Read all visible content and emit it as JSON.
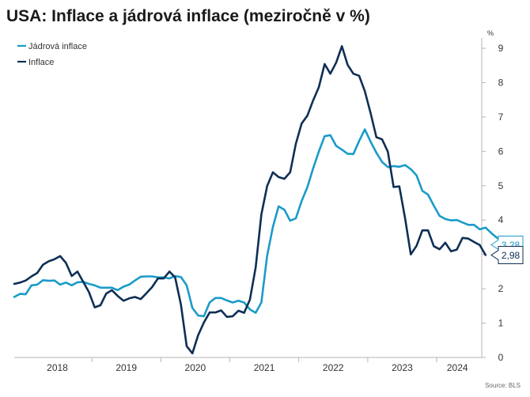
{
  "chart_data": {
    "type": "line",
    "title": "USA: Inflace a jádrová inflace (meziročně v %)",
    "ylabel": "%",
    "source": "Source: BLS",
    "ylim": [
      0,
      9.3
    ],
    "yticks": [
      "0",
      "1",
      "2",
      "3",
      "4",
      "5",
      "6",
      "7",
      "8",
      "9"
    ],
    "xlim": [
      2017.875,
      2024.55
    ],
    "xticks": [
      {
        "label": "2018",
        "value": 2018.5
      },
      {
        "label": "2019",
        "value": 2019.5
      },
      {
        "label": "2020",
        "value": 2020.5
      },
      {
        "label": "2021",
        "value": 2021.5
      },
      {
        "label": "2022",
        "value": 2022.5
      },
      {
        "label": "2023",
        "value": 2023.5
      },
      {
        "label": "2024",
        "value": 2024.3
      }
    ],
    "xseparators": [
      2019.0,
      2020.0,
      2021.0,
      2022.0,
      2023.0,
      2024.0
    ],
    "grid": false,
    "legend_position": "top-left",
    "series": [
      {
        "name": "Jádrová inflace",
        "color": "#1a9bc9",
        "end_label": "3,28",
        "start": 2017.875,
        "values": [
          1.76,
          1.85,
          1.84,
          2.1,
          2.12,
          2.25,
          2.23,
          2.24,
          2.12,
          2.18,
          2.1,
          2.19,
          2.2,
          2.14,
          2.1,
          2.03,
          2.03,
          2.03,
          1.96,
          2.06,
          2.12,
          2.24,
          2.35,
          2.36,
          2.36,
          2.33,
          2.33,
          2.3,
          2.37,
          2.34,
          2.1,
          1.44,
          1.22,
          1.2,
          1.6,
          1.73,
          1.73,
          1.66,
          1.6,
          1.65,
          1.6,
          1.4,
          1.3,
          1.6,
          2.96,
          3.8,
          4.4,
          4.3,
          3.98,
          4.05,
          4.55,
          4.96,
          5.5,
          6.0,
          6.44,
          6.47,
          6.16,
          6.05,
          5.93,
          5.92,
          6.3,
          6.64,
          6.28,
          5.96,
          5.69,
          5.54,
          5.57,
          5.55,
          5.6,
          5.48,
          5.3,
          4.85,
          4.74,
          4.42,
          4.12,
          4.03,
          3.99,
          4.0,
          3.93,
          3.86,
          3.86,
          3.73,
          3.78,
          3.62,
          3.48,
          3.4,
          3.28
        ]
      },
      {
        "name": "Inflace",
        "color": "#0e2f55",
        "end_label": "2,98",
        "start": 2017.875,
        "values": [
          2.14,
          2.18,
          2.24,
          2.36,
          2.46,
          2.7,
          2.8,
          2.86,
          2.95,
          2.75,
          2.37,
          2.5,
          2.2,
          1.9,
          1.46,
          1.52,
          1.86,
          1.96,
          1.79,
          1.65,
          1.72,
          1.76,
          1.7,
          1.87,
          2.05,
          2.3,
          2.3,
          2.5,
          2.33,
          1.54,
          0.33,
          0.12,
          0.65,
          1.02,
          1.31,
          1.31,
          1.37,
          1.18,
          1.2,
          1.36,
          1.3,
          1.68,
          2.62,
          4.16,
          4.99,
          5.39,
          5.25,
          5.2,
          5.39,
          6.22,
          6.81,
          7.04,
          7.48,
          7.87,
          8.54,
          8.26,
          8.58,
          9.06,
          8.52,
          8.26,
          8.2,
          7.75,
          7.11,
          6.41,
          6.35,
          5.99,
          4.96,
          4.98,
          4.05,
          3.0,
          3.25,
          3.7,
          3.7,
          3.24,
          3.15,
          3.34,
          3.09,
          3.14,
          3.48,
          3.46,
          3.36,
          3.27,
          2.98
        ]
      }
    ]
  }
}
